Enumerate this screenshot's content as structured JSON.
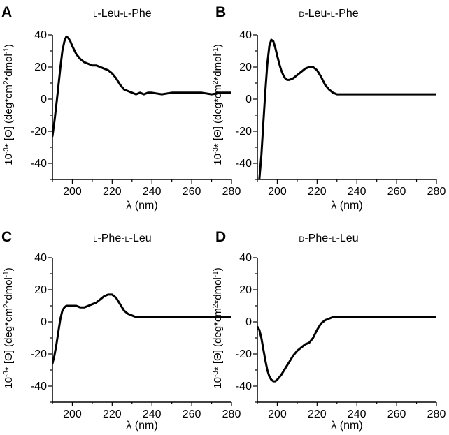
{
  "figure": {
    "panels": [
      {
        "letter": "A",
        "title": [
          {
            "t": "L",
            "sc": true
          },
          {
            "t": "-Leu-"
          },
          {
            "t": "L",
            "sc": true
          },
          {
            "t": "-Phe"
          }
        ]
      },
      {
        "letter": "B",
        "title": [
          {
            "t": "D",
            "sc": true
          },
          {
            "t": "-Leu-"
          },
          {
            "t": "L",
            "sc": true
          },
          {
            "t": "-Phe"
          }
        ]
      },
      {
        "letter": "C",
        "title": [
          {
            "t": "L",
            "sc": true
          },
          {
            "t": "-Phe-"
          },
          {
            "t": "L",
            "sc": true
          },
          {
            "t": "-Leu"
          }
        ]
      },
      {
        "letter": "D",
        "title": [
          {
            "t": "D",
            "sc": true
          },
          {
            "t": "-Phe-"
          },
          {
            "t": "L",
            "sc": true
          },
          {
            "t": "-Leu"
          }
        ]
      }
    ]
  },
  "chart_data": [
    {
      "type": "line",
      "title": "L-Leu-L-Phe",
      "xlabel": "λ (nm)",
      "ylabel": "10-3* [Θ] (deg*cm2*dmol-1)",
      "xlim": [
        190,
        280
      ],
      "ylim": [
        -50,
        40
      ],
      "xticks": [
        200,
        220,
        240,
        260,
        280
      ],
      "yticks": [
        40,
        20,
        0,
        -20,
        -40
      ],
      "grid": false,
      "x": [
        190,
        191,
        192,
        193,
        194,
        195,
        196,
        197,
        198,
        199,
        200,
        202,
        204,
        206,
        208,
        210,
        212,
        214,
        216,
        218,
        220,
        222,
        224,
        226,
        228,
        230,
        232,
        234,
        236,
        238,
        240,
        245,
        250,
        255,
        260,
        265,
        270,
        275,
        280
      ],
      "y": [
        -23,
        -14,
        -3,
        8,
        20,
        30,
        36,
        39,
        38,
        36,
        33,
        28,
        25,
        23,
        22,
        21,
        21,
        20,
        19,
        18,
        16,
        13,
        9,
        6,
        5,
        4,
        3,
        4,
        3,
        4,
        4,
        3,
        4,
        4,
        4,
        4,
        3,
        4,
        4
      ]
    },
    {
      "type": "line",
      "title": "D-Leu-L-Phe",
      "xlabel": "λ (nm)",
      "ylabel": "10-3* [Θ] (deg*cm2*dmol-1)",
      "xlim": [
        190,
        280
      ],
      "ylim": [
        -50,
        40
      ],
      "xticks": [
        200,
        220,
        240,
        260,
        280
      ],
      "yticks": [
        40,
        20,
        0,
        -20,
        -40
      ],
      "grid": false,
      "x": [
        191,
        192,
        193,
        194,
        195,
        196,
        197,
        198,
        199,
        200,
        201,
        202,
        203,
        204,
        205,
        206,
        208,
        210,
        212,
        214,
        216,
        218,
        220,
        222,
        224,
        226,
        228,
        230,
        232,
        234,
        236,
        240,
        245,
        250,
        255,
        260,
        265,
        270,
        275,
        280
      ],
      "y": [
        -50,
        -35,
        -15,
        5,
        22,
        33,
        37,
        36,
        32,
        27,
        22,
        18,
        15,
        13,
        12,
        12,
        13,
        15,
        17,
        19,
        20,
        20,
        18,
        14,
        9,
        6,
        4,
        3,
        3,
        3,
        3,
        3,
        3,
        3,
        3,
        3,
        3,
        3,
        3,
        3
      ]
    },
    {
      "type": "line",
      "title": "L-Phe-L-Leu",
      "xlabel": "λ (nm)",
      "ylabel": "10-3* [Θ] (deg*cm2*dmol-1)",
      "xlim": [
        190,
        280
      ],
      "ylim": [
        -50,
        40
      ],
      "xticks": [
        200,
        220,
        240,
        260,
        280
      ],
      "yticks": [
        40,
        20,
        0,
        -20,
        -40
      ],
      "grid": false,
      "x": [
        190,
        191,
        192,
        193,
        194,
        195,
        196,
        197,
        198,
        199,
        200,
        202,
        204,
        206,
        208,
        210,
        212,
        214,
        216,
        218,
        220,
        222,
        224,
        226,
        228,
        230,
        232,
        234,
        236,
        240,
        245,
        250,
        255,
        260,
        265,
        270,
        275,
        280
      ],
      "y": [
        -26,
        -21,
        -14,
        -6,
        2,
        7,
        9,
        10,
        10,
        10,
        10,
        10,
        9,
        9,
        10,
        11,
        12,
        14,
        16,
        17,
        17,
        15,
        11,
        7,
        5,
        4,
        3,
        3,
        3,
        3,
        3,
        3,
        3,
        3,
        3,
        3,
        3,
        3
      ]
    },
    {
      "type": "line",
      "title": "D-Phe-L-Leu",
      "xlabel": "λ (nm)",
      "ylabel": "10-3* [Θ] (deg*cm2*dmol-1)",
      "xlim": [
        190,
        280
      ],
      "ylim": [
        -50,
        40
      ],
      "xticks": [
        200,
        220,
        240,
        260,
        280
      ],
      "yticks": [
        40,
        20,
        0,
        -20,
        -40
      ],
      "grid": false,
      "x": [
        190,
        191,
        192,
        193,
        194,
        195,
        196,
        197,
        198,
        199,
        200,
        202,
        204,
        206,
        208,
        210,
        212,
        214,
        216,
        218,
        220,
        222,
        224,
        226,
        228,
        230,
        232,
        234,
        236,
        240,
        245,
        250,
        255,
        260,
        265,
        270,
        275,
        280
      ],
      "y": [
        -3,
        -5,
        -10,
        -17,
        -24,
        -30,
        -34,
        -36,
        -37,
        -37,
        -36,
        -33,
        -29,
        -25,
        -21,
        -18,
        -16,
        -14,
        -13,
        -10,
        -5,
        -1,
        1,
        2,
        3,
        3,
        3,
        3,
        3,
        3,
        3,
        3,
        3,
        3,
        3,
        3,
        3,
        3
      ]
    }
  ]
}
